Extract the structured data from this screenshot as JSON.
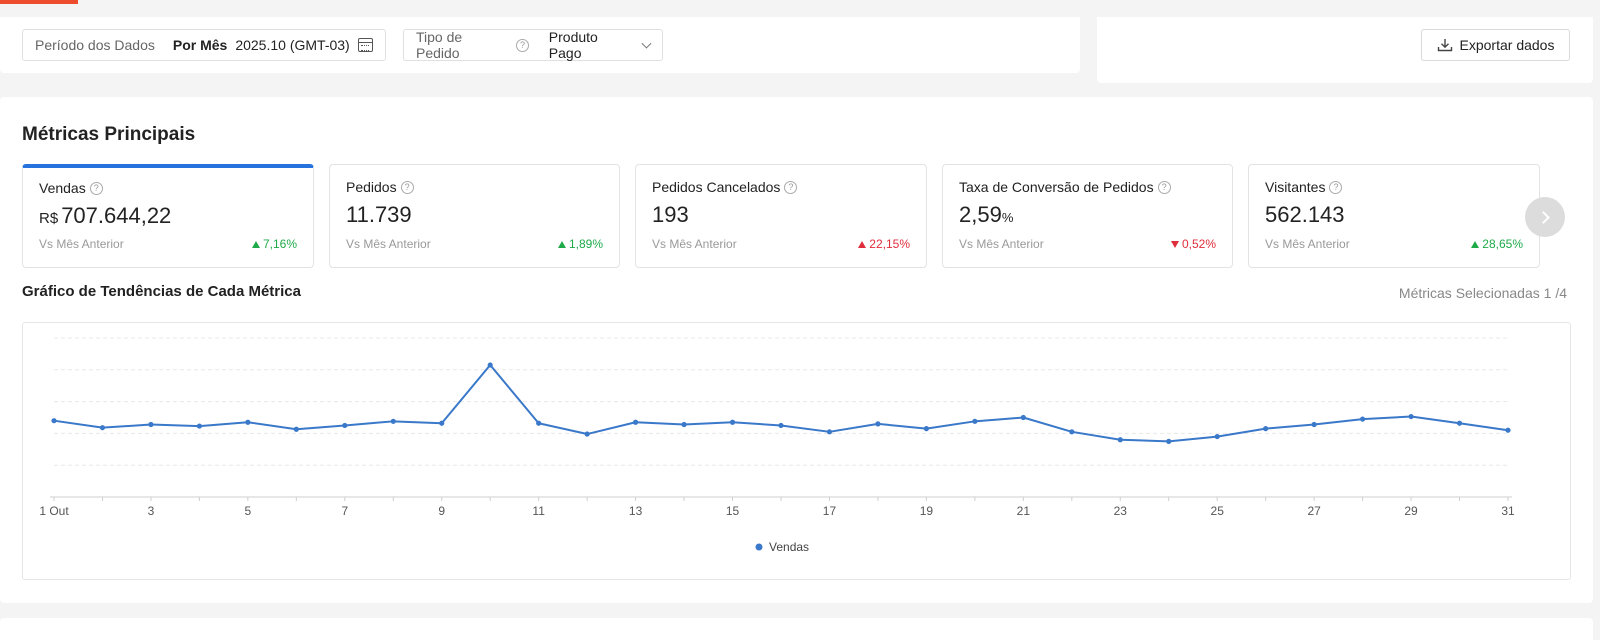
{
  "filters": {
    "period_label": "Período dos Dados",
    "period_mode": "Por Mês",
    "period_value": "2025.10 (GMT-03)",
    "order_type_label": "Tipo de Pedido",
    "order_type_value": "Produto Pago",
    "export_label": "Exportar dados"
  },
  "section_title": "Métricas Principais",
  "metrics": [
    {
      "name": "Vendas",
      "currency": "R$",
      "value": "707.644,22",
      "compare": "Vs Mês Anterior",
      "change": "7,16%",
      "direction": "up",
      "active": true
    },
    {
      "name": "Pedidos",
      "value": "11.739",
      "compare": "Vs Mês Anterior",
      "change": "1,89%",
      "direction": "up"
    },
    {
      "name": "Pedidos Cancelados",
      "value": "193",
      "compare": "Vs Mês Anterior",
      "change": "22,15%",
      "direction": "up",
      "negative": true
    },
    {
      "name": "Taxa de Conversão de Pedidos",
      "value": "2,59",
      "unit": "%",
      "compare": "Vs Mês Anterior",
      "change": "0,52%",
      "direction": "down",
      "negative": true
    },
    {
      "name": "Visitantes",
      "value": "562.143",
      "compare": "Vs Mês Anterior",
      "change": "28,65%",
      "direction": "up"
    }
  ],
  "trend": {
    "title": "Gráfico de Tendências de Cada Métrica",
    "selected": "Métricas Selecionadas 1 /4"
  },
  "colors": {
    "accent": "#ee4d2d",
    "active_tab": "#2673dd",
    "positive": "#1faa4a",
    "negative": "#e02d3c",
    "series": "#3a78c9"
  },
  "chart_data": {
    "type": "line",
    "x": [
      1,
      2,
      3,
      4,
      5,
      6,
      7,
      8,
      9,
      10,
      11,
      12,
      13,
      14,
      15,
      16,
      17,
      18,
      19,
      20,
      21,
      22,
      23,
      24,
      25,
      26,
      27,
      28,
      29,
      30,
      31
    ],
    "x_tick_labels": [
      "1 Out",
      "3",
      "5",
      "7",
      "9",
      "11",
      "13",
      "15",
      "17",
      "19",
      "21",
      "23",
      "25",
      "27",
      "29",
      "31"
    ],
    "x_tick_values": [
      1,
      3,
      5,
      7,
      9,
      11,
      13,
      15,
      17,
      19,
      21,
      23,
      25,
      27,
      29,
      31
    ],
    "series": [
      {
        "name": "Vendas",
        "values": [
          24.0,
          21.8,
          22.8,
          22.3,
          23.5,
          21.3,
          22.5,
          23.8,
          23.2,
          41.5,
          23.2,
          19.8,
          23.5,
          22.8,
          23.5,
          22.5,
          20.5,
          23.0,
          21.5,
          23.8,
          25.0,
          20.5,
          18.0,
          17.5,
          19.0,
          21.5,
          22.8,
          24.5,
          25.3,
          23.2,
          21.0
        ]
      }
    ],
    "ylim": [
      0,
      50
    ],
    "y_gridlines": [
      10,
      20,
      30,
      40,
      50
    ],
    "y_tick_labels_shown": false,
    "grid": true,
    "legend": "bottom-center"
  }
}
